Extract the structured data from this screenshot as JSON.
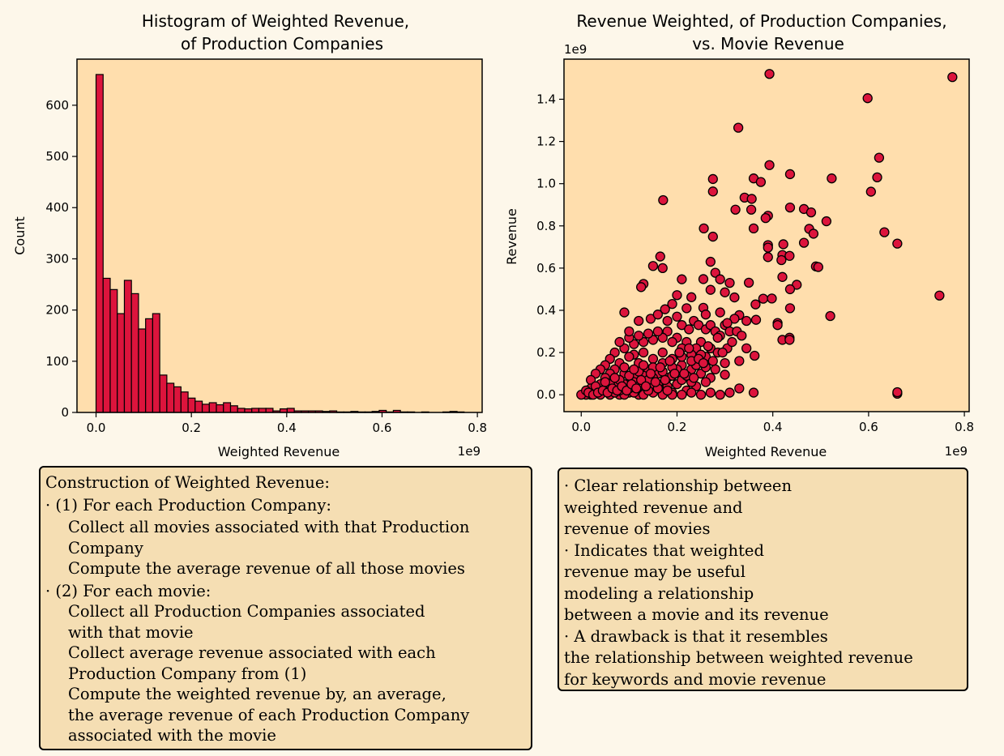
{
  "chart_data": [
    {
      "type": "bar",
      "title": [
        "Histogram of Weighted Revenue,",
        "of Production Companies"
      ],
      "xlabel": "Weighted Revenue",
      "ylabel": "Count",
      "x_offset_label": "1e9",
      "x_ticks": [
        "0.0",
        "0.2",
        "0.4",
        "0.6",
        "0.8"
      ],
      "y_ticks": [
        "0",
        "100",
        "200",
        "300",
        "400",
        "500",
        "600"
      ],
      "xlim": [
        -0.04,
        0.81
      ],
      "ylim": [
        0,
        690
      ],
      "bin_start": 0.0,
      "bin_width": 0.01485,
      "values": [
        660,
        262,
        240,
        193,
        258,
        232,
        163,
        183,
        193,
        73,
        57,
        50,
        40,
        28,
        22,
        16,
        19,
        15,
        19,
        13,
        8,
        7,
        8,
        8,
        8,
        3,
        7,
        8,
        3,
        3,
        3,
        3,
        2,
        3,
        1,
        1,
        2,
        1,
        1,
        2,
        4,
        1,
        4,
        1,
        1,
        0,
        1,
        0,
        0,
        1,
        2,
        1
      ],
      "bar_color": "#dc143c",
      "face_color": "#ffdead"
    },
    {
      "type": "scatter",
      "title": [
        "Revenue Weighted, of Production Companies,",
        "vs. Movie Revenue"
      ],
      "xlabel": "Weighted Revenue",
      "ylabel": "Revenue",
      "x_offset_label": "1e9",
      "y_offset_label": "1e9",
      "x_ticks": [
        "0.0",
        "0.2",
        "0.4",
        "0.6",
        "0.8"
      ],
      "y_ticks": [
        "0.0",
        "0.2",
        "0.4",
        "0.6",
        "0.8",
        "1.0",
        "1.2",
        "1.4"
      ],
      "xlim": [
        -0.036,
        0.81
      ],
      "ylim": [
        -0.08,
        1.59
      ],
      "marker_color": "#dc143c",
      "face_color": "#ffdead",
      "points": [
        [
          0.393,
          1.52
        ],
        [
          0.775,
          1.505
        ],
        [
          0.598,
          1.405
        ],
        [
          0.328,
          1.265
        ],
        [
          0.622,
          1.123
        ],
        [
          0.393,
          1.088
        ],
        [
          0.436,
          1.045
        ],
        [
          0.275,
          1.022
        ],
        [
          0.36,
          1.025
        ],
        [
          0.523,
          1.025
        ],
        [
          0.618,
          1.03
        ],
        [
          0.375,
          1.008
        ],
        [
          0.275,
          0.963
        ],
        [
          0.605,
          0.962
        ],
        [
          0.341,
          0.934
        ],
        [
          0.356,
          0.928
        ],
        [
          0.171,
          0.922
        ],
        [
          0.322,
          0.877
        ],
        [
          0.355,
          0.877
        ],
        [
          0.436,
          0.887
        ],
        [
          0.465,
          0.88
        ],
        [
          0.48,
          0.864
        ],
        [
          0.39,
          0.848
        ],
        [
          0.385,
          0.837
        ],
        [
          0.512,
          0.822
        ],
        [
          0.256,
          0.788
        ],
        [
          0.36,
          0.788
        ],
        [
          0.476,
          0.786
        ],
        [
          0.633,
          0.77
        ],
        [
          0.485,
          0.763
        ],
        [
          0.275,
          0.749
        ],
        [
          0.465,
          0.72
        ],
        [
          0.66,
          0.716
        ],
        [
          0.422,
          0.713
        ],
        [
          0.39,
          0.709
        ],
        [
          0.39,
          0.697
        ],
        [
          0.42,
          0.662
        ],
        [
          0.435,
          0.658
        ],
        [
          0.39,
          0.652
        ],
        [
          0.418,
          0.638
        ],
        [
          0.165,
          0.655
        ],
        [
          0.27,
          0.63
        ],
        [
          0.15,
          0.61
        ],
        [
          0.17,
          0.6
        ],
        [
          0.28,
          0.578
        ],
        [
          0.49,
          0.608
        ],
        [
          0.495,
          0.605
        ],
        [
          0.42,
          0.558
        ],
        [
          0.21,
          0.547
        ],
        [
          0.255,
          0.548
        ],
        [
          0.29,
          0.547
        ],
        [
          0.31,
          0.53
        ],
        [
          0.35,
          0.531
        ],
        [
          0.13,
          0.525
        ],
        [
          0.125,
          0.51
        ],
        [
          0.45,
          0.521
        ],
        [
          0.436,
          0.5
        ],
        [
          0.27,
          0.497
        ],
        [
          0.3,
          0.485
        ],
        [
          0.2,
          0.472
        ],
        [
          0.23,
          0.462
        ],
        [
          0.32,
          0.461
        ],
        [
          0.364,
          0.428
        ],
        [
          0.38,
          0.455
        ],
        [
          0.398,
          0.456
        ],
        [
          0.52,
          0.373
        ],
        [
          0.748,
          0.47
        ],
        [
          0.175,
          0.405
        ],
        [
          0.19,
          0.43
        ],
        [
          0.22,
          0.41
        ],
        [
          0.255,
          0.412
        ],
        [
          0.26,
          0.38
        ],
        [
          0.29,
          0.39
        ],
        [
          0.33,
          0.377
        ],
        [
          0.345,
          0.35
        ],
        [
          0.436,
          0.41
        ],
        [
          0.41,
          0.34
        ],
        [
          0.41,
          0.33
        ],
        [
          0.365,
          0.355
        ],
        [
          0.42,
          0.26
        ],
        [
          0.435,
          0.27
        ],
        [
          0.435,
          0.26
        ],
        [
          0.362,
          0.185
        ],
        [
          0.33,
          0.16
        ],
        [
          0.305,
          0.22
        ],
        [
          0.3,
          0.095
        ],
        [
          0.33,
          0.03
        ],
        [
          0.36,
          0.01
        ],
        [
          0.66,
          0.005
        ],
        [
          0.66,
          0.012
        ],
        [
          0.09,
          0.39
        ],
        [
          0.12,
          0.35
        ],
        [
          0.145,
          0.36
        ],
        [
          0.16,
          0.38
        ],
        [
          0.18,
          0.35
        ],
        [
          0.2,
          0.37
        ],
        [
          0.21,
          0.33
        ],
        [
          0.225,
          0.31
        ],
        [
          0.235,
          0.35
        ],
        [
          0.245,
          0.33
        ],
        [
          0.26,
          0.31
        ],
        [
          0.27,
          0.33
        ],
        [
          0.28,
          0.3
        ],
        [
          0.29,
          0.28
        ],
        [
          0.3,
          0.33
        ],
        [
          0.31,
          0.3
        ],
        [
          0.32,
          0.36
        ],
        [
          0.25,
          0.25
        ],
        [
          0.27,
          0.22
        ],
        [
          0.285,
          0.2
        ],
        [
          0.3,
          0.15
        ],
        [
          0.26,
          0.18
        ],
        [
          0.24,
          0.22
        ],
        [
          0.23,
          0.19
        ],
        [
          0.22,
          0.25
        ],
        [
          0.21,
          0.22
        ],
        [
          0.2,
          0.27
        ],
        [
          0.19,
          0.25
        ],
        [
          0.18,
          0.3
        ],
        [
          0.17,
          0.27
        ],
        [
          0.16,
          0.3
        ],
        [
          0.15,
          0.26
        ],
        [
          0.14,
          0.29
        ],
        [
          0.13,
          0.25
        ],
        [
          0.12,
          0.28
        ],
        [
          0.11,
          0.24
        ],
        [
          0.1,
          0.27
        ],
        [
          0.09,
          0.22
        ],
        [
          0.08,
          0.25
        ],
        [
          0.07,
          0.2
        ],
        [
          0.06,
          0.17
        ],
        [
          0.05,
          0.14
        ],
        [
          0.04,
          0.12
        ],
        [
          0.03,
          0.1
        ],
        [
          0.02,
          0.07
        ],
        [
          0.1,
          0.3
        ],
        [
          0.11,
          0.19
        ],
        [
          0.13,
          0.2
        ],
        [
          0.15,
          0.17
        ],
        [
          0.17,
          0.2
        ],
        [
          0.19,
          0.17
        ],
        [
          0.21,
          0.14
        ],
        [
          0.23,
          0.12
        ],
        [
          0.25,
          0.1
        ],
        [
          0.27,
          0.08
        ],
        [
          0.28,
          0.12
        ],
        [
          0.26,
          0.06
        ],
        [
          0.24,
          0.04
        ],
        [
          0.22,
          0.02
        ],
        [
          0.2,
          0.05
        ],
        [
          0.18,
          0.08
        ],
        [
          0.16,
          0.1
        ],
        [
          0.14,
          0.12
        ],
        [
          0.12,
          0.15
        ],
        [
          0.1,
          0.18
        ],
        [
          0.08,
          0.15
        ],
        [
          0.07,
          0.12
        ],
        [
          0.06,
          0.1
        ],
        [
          0.05,
          0.08
        ],
        [
          0.09,
          0.1
        ],
        [
          0.11,
          0.08
        ],
        [
          0.13,
          0.06
        ],
        [
          0.15,
          0.04
        ],
        [
          0.17,
          0.02
        ],
        [
          0.19,
          0.01
        ],
        [
          0.21,
          0.0
        ],
        [
          0.23,
          0.01
        ],
        [
          0.25,
          0.0
        ],
        [
          0.27,
          0.01
        ],
        [
          0.29,
          0.0
        ],
        [
          0.31,
          0.01
        ],
        [
          0.12,
          0.0
        ],
        [
          0.1,
          0.01
        ],
        [
          0.08,
          0.0
        ],
        [
          0.06,
          0.01
        ],
        [
          0.04,
          0.0
        ],
        [
          0.02,
          0.0
        ],
        [
          0.01,
          0.0
        ],
        [
          0.0,
          0.0
        ],
        [
          0.03,
          0.02
        ],
        [
          0.05,
          0.03
        ],
        [
          0.07,
          0.04
        ],
        [
          0.09,
          0.05
        ],
        [
          0.11,
          0.06
        ],
        [
          0.13,
          0.09
        ],
        [
          0.15,
          0.08
        ],
        [
          0.17,
          0.11
        ],
        [
          0.19,
          0.09
        ],
        [
          0.21,
          0.07
        ],
        [
          0.23,
          0.06
        ],
        [
          0.12,
          0.11
        ],
        [
          0.14,
          0.07
        ],
        [
          0.16,
          0.05
        ],
        [
          0.18,
          0.04
        ],
        [
          0.2,
          0.12
        ],
        [
          0.22,
          0.09
        ],
        [
          0.24,
          0.14
        ],
        [
          0.26,
          0.13
        ],
        [
          0.06,
          0.05
        ],
        [
          0.08,
          0.07
        ],
        [
          0.1,
          0.09
        ],
        [
          0.04,
          0.05
        ],
        [
          0.02,
          0.03
        ],
        [
          0.01,
          0.02
        ],
        [
          0.03,
          0.04
        ],
        [
          0.05,
          0.06
        ],
        [
          0.07,
          0.08
        ],
        [
          0.09,
          0.13
        ],
        [
          0.11,
          0.12
        ],
        [
          0.13,
          0.14
        ],
        [
          0.15,
          0.13
        ],
        [
          0.17,
          0.15
        ],
        [
          0.19,
          0.13
        ],
        [
          0.21,
          0.18
        ],
        [
          0.23,
          0.16
        ],
        [
          0.25,
          0.19
        ],
        [
          0.06,
          0.0
        ],
        [
          0.07,
          0.01
        ],
        [
          0.09,
          0.0
        ],
        [
          0.11,
          0.01
        ],
        [
          0.13,
          0.0
        ],
        [
          0.15,
          0.01
        ],
        [
          0.17,
          0.0
        ],
        [
          0.19,
          0.0
        ],
        [
          0.08,
          0.02
        ],
        [
          0.1,
          0.03
        ],
        [
          0.12,
          0.04
        ],
        [
          0.14,
          0.02
        ],
        [
          0.16,
          0.03
        ],
        [
          0.18,
          0.02
        ],
        [
          0.015,
          0.01
        ],
        [
          0.025,
          0.0
        ],
        [
          0.035,
          0.01
        ],
        [
          0.045,
          0.02
        ],
        [
          0.055,
          0.01
        ],
        [
          0.065,
          0.03
        ],
        [
          0.075,
          0.02
        ],
        [
          0.085,
          0.04
        ],
        [
          0.095,
          0.02
        ],
        [
          0.105,
          0.05
        ],
        [
          0.115,
          0.03
        ],
        [
          0.125,
          0.07
        ],
        [
          0.135,
          0.04
        ],
        [
          0.145,
          0.1
        ],
        [
          0.155,
          0.06
        ],
        [
          0.165,
          0.13
        ],
        [
          0.175,
          0.07
        ],
        [
          0.185,
          0.16
        ],
        [
          0.195,
          0.1
        ],
        [
          0.205,
          0.2
        ],
        [
          0.215,
          0.1
        ],
        [
          0.225,
          0.22
        ],
        [
          0.235,
          0.08
        ],
        [
          0.245,
          0.17
        ],
        [
          0.255,
          0.15
        ],
        [
          0.265,
          0.23
        ],
        [
          0.275,
          0.16
        ],
        [
          0.285,
          0.27
        ],
        [
          0.295,
          0.2
        ],
        [
          0.305,
          0.34
        ],
        [
          0.315,
          0.25
        ],
        [
          0.325,
          0.3
        ],
        [
          0.335,
          0.28
        ],
        [
          0.345,
          0.22
        ]
      ]
    }
  ],
  "notes": {
    "left_box": {
      "l1": "Construction of Weighted Revenue:",
      "l2": "· (1) For each Production Company:",
      "l3": "Collect all movies associated with that Production",
      "l4": "Company",
      "l5": "Compute the average revenue of all those movies",
      "l6": "· (2) For each movie:",
      "l7": "Collect all Production Companies associated",
      "l8": "with that movie",
      "l9": "Collect average revenue associated with each",
      "l10": "Production Company from (1)",
      "l11": "Compute the weighted revenue by, an average,",
      "l12": "the average revenue of each Production Company",
      "l13": "associated with the movie"
    },
    "right_box": {
      "l1": "· Clear relationship between",
      "l2": "weighted revenue and",
      "l3": "revenue of movies",
      "l4": "· Indicates that weighted",
      "l5": "revenue may be useful",
      "l6": "modeling a relationship",
      "l7": "between a movie and its revenue",
      "l8": "· A drawback is that it resembles",
      "l9": "the relationship between weighted revenue",
      "l10": "for keywords and movie revenue"
    }
  }
}
